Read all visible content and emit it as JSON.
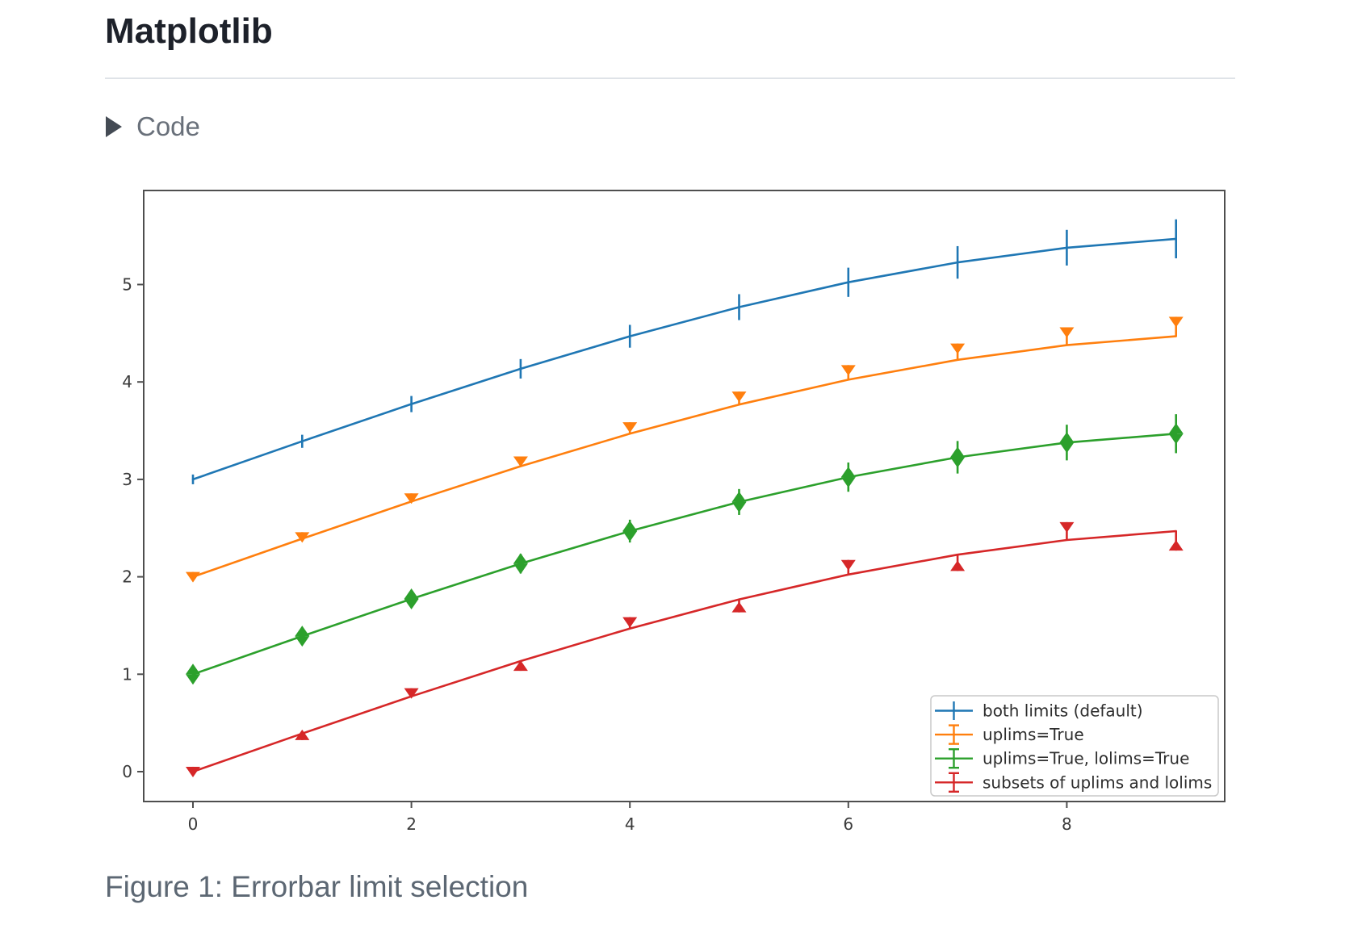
{
  "page": {
    "title": "Matplotlib",
    "code_toggle": {
      "label": "Code",
      "icon": "triangle-right-icon",
      "state": "collapsed"
    },
    "caption": "Figure 1: Errorbar limit selection"
  },
  "chart_data": {
    "type": "line",
    "title": "",
    "xlabel": "",
    "ylabel": "",
    "x": [
      0,
      1,
      2,
      3,
      4,
      5,
      6,
      7,
      8,
      9
    ],
    "yerr": [
      0.05,
      0.067,
      0.083,
      0.1,
      0.117,
      0.133,
      0.15,
      0.167,
      0.183,
      0.2
    ],
    "x_ticks": [
      0,
      2,
      4,
      6,
      8
    ],
    "y_ticks": [
      0,
      1,
      2,
      3,
      4,
      5
    ],
    "xlim": [
      -0.45,
      9.45
    ],
    "ylim": [
      -0.31,
      5.97
    ],
    "grid": false,
    "legend_position": "lower right",
    "series": [
      {
        "name": "both limits (default)",
        "color": "#1f77b4",
        "limit_style": "none",
        "point_limits": [
          "bar",
          "bar",
          "bar",
          "bar",
          "bar",
          "bar",
          "bar",
          "bar",
          "bar",
          "bar"
        ],
        "values": [
          3.0,
          3.391,
          3.773,
          4.135,
          4.469,
          4.768,
          5.023,
          5.227,
          5.378,
          5.469
        ]
      },
      {
        "name": "uplims=True",
        "color": "#ff7f0e",
        "limit_style": "uplims",
        "point_limits": [
          "uplim",
          "uplim",
          "uplim",
          "uplim",
          "uplim",
          "uplim",
          "uplim",
          "uplim",
          "uplim",
          "uplim"
        ],
        "values": [
          2.0,
          2.391,
          2.773,
          3.135,
          3.469,
          3.768,
          4.023,
          4.227,
          4.378,
          4.469
        ]
      },
      {
        "name": "uplims=True, lolims=True",
        "color": "#2ca02c",
        "limit_style": "uplims+lolims",
        "point_limits": [
          "updown",
          "updown",
          "updown",
          "updown",
          "updown",
          "updown",
          "updown",
          "updown",
          "updown",
          "updown"
        ],
        "values": [
          1.0,
          1.391,
          1.773,
          2.135,
          2.469,
          2.768,
          3.023,
          3.227,
          3.378,
          3.469
        ]
      },
      {
        "name": "subsets of uplims and lolims",
        "color": "#d62728",
        "limit_style": "alternating",
        "point_limits": [
          "uplim",
          "lolim",
          "uplim",
          "lolim",
          "uplim",
          "lolim",
          "uplim",
          "lolim",
          "uplim",
          "lolim"
        ],
        "values": [
          0.0,
          0.391,
          0.773,
          1.135,
          1.469,
          1.768,
          2.023,
          2.227,
          2.378,
          2.469
        ]
      }
    ]
  }
}
